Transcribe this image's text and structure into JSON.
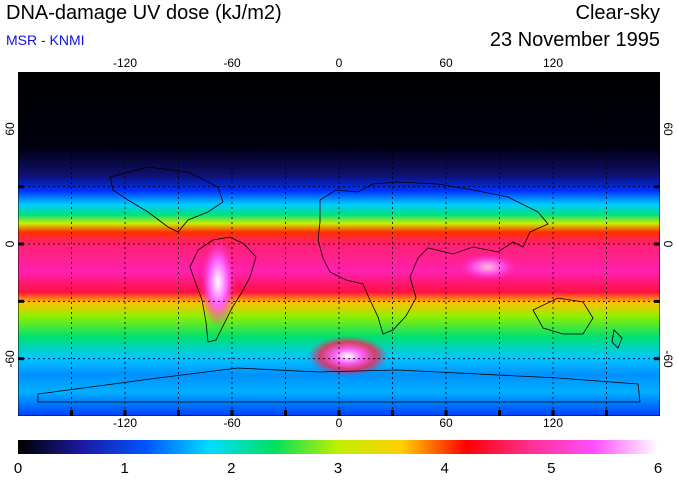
{
  "header": {
    "title": "DNA-damage UV dose (kJ/m2)",
    "subtitle": "MSR - KNMI",
    "right_title": "Clear-sky",
    "date": "23 November 1995"
  },
  "map": {
    "lon_ticks": [
      "-120",
      "-60",
      "0",
      "60",
      "120"
    ],
    "lat_ticks": [
      "60",
      "0",
      "-60"
    ],
    "lon_range": [
      -180,
      180
    ],
    "lat_range": [
      -90,
      90
    ],
    "grid": true,
    "grid_lon": [
      -150,
      -120,
      -90,
      -60,
      -30,
      0,
      30,
      60,
      90,
      120,
      150
    ],
    "grid_lat": [
      -60,
      -30,
      0,
      30,
      60
    ]
  },
  "colorbar": {
    "labels": [
      "0",
      "1",
      "2",
      "3",
      "4",
      "5",
      "6"
    ],
    "min": 0,
    "max": 6,
    "colors": [
      "#000000",
      "#1a1aa0",
      "#0055ff",
      "#00ddff",
      "#00e060",
      "#c0f000",
      "#ffd000",
      "#ff0000",
      "#ff3090",
      "#ff50ff",
      "#ffffff"
    ]
  }
}
